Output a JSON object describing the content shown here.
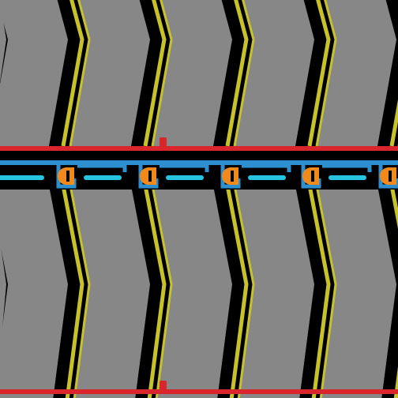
{
  "colors": {
    "background": "#000000",
    "panel_fill": "#878787",
    "panel_outline": "#000000",
    "stripe": "#c8c22a",
    "rail": "#d8262c",
    "track_blue": "#2d8fd0",
    "track_orange": "#f08a1c",
    "track_cyan": "#27c4e0"
  },
  "panel_columns": 5,
  "rails": 2,
  "track_nodes": 5
}
